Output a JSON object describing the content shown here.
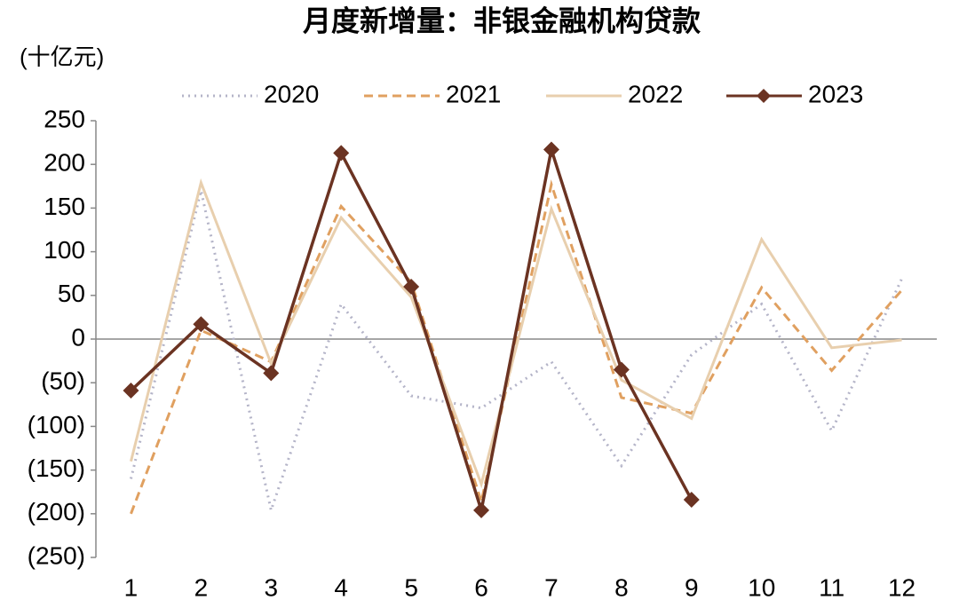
{
  "chart_data": {
    "type": "line",
    "title": "月度新增量：非银金融机构贷款",
    "y_label": "(十亿元)",
    "categories": [
      "1",
      "2",
      "3",
      "4",
      "5",
      "6",
      "7",
      "8",
      "9",
      "10",
      "11",
      "12"
    ],
    "series": [
      {
        "name": "2020",
        "color": "#b4b4c8",
        "style": "dotted",
        "values": [
          -160,
          170,
          -196,
          40,
          -65,
          -79,
          -26,
          -145,
          -18,
          40,
          -105,
          69
        ]
      },
      {
        "name": "2021",
        "color": "#e0a060",
        "style": "dashed",
        "values": [
          -200,
          10,
          -26,
          152,
          65,
          -186,
          177,
          -67,
          -85,
          59,
          -36,
          56
        ]
      },
      {
        "name": "2022",
        "color": "#e8cfae",
        "style": "solid",
        "values": [
          -140,
          179,
          -28,
          139,
          48,
          -166,
          149,
          -47,
          -91,
          114,
          -10,
          -1
        ]
      },
      {
        "name": "2023",
        "color": "#6b3322",
        "style": "solid",
        "marker": "diamond",
        "values": [
          -59,
          17,
          -39,
          213,
          60,
          -196,
          217,
          -35,
          -184,
          null,
          null,
          null
        ]
      }
    ],
    "ylim": [
      -250,
      250
    ],
    "yticks": [
      {
        "value": -250,
        "label": "(250)"
      },
      {
        "value": -200,
        "label": "(200)"
      },
      {
        "value": -150,
        "label": "(150)"
      },
      {
        "value": -100,
        "label": "(100)"
      },
      {
        "value": -50,
        "label": "(50)"
      },
      0,
      50,
      100,
      150,
      200,
      250
    ],
    "negative_tick_color": "#e00000"
  }
}
